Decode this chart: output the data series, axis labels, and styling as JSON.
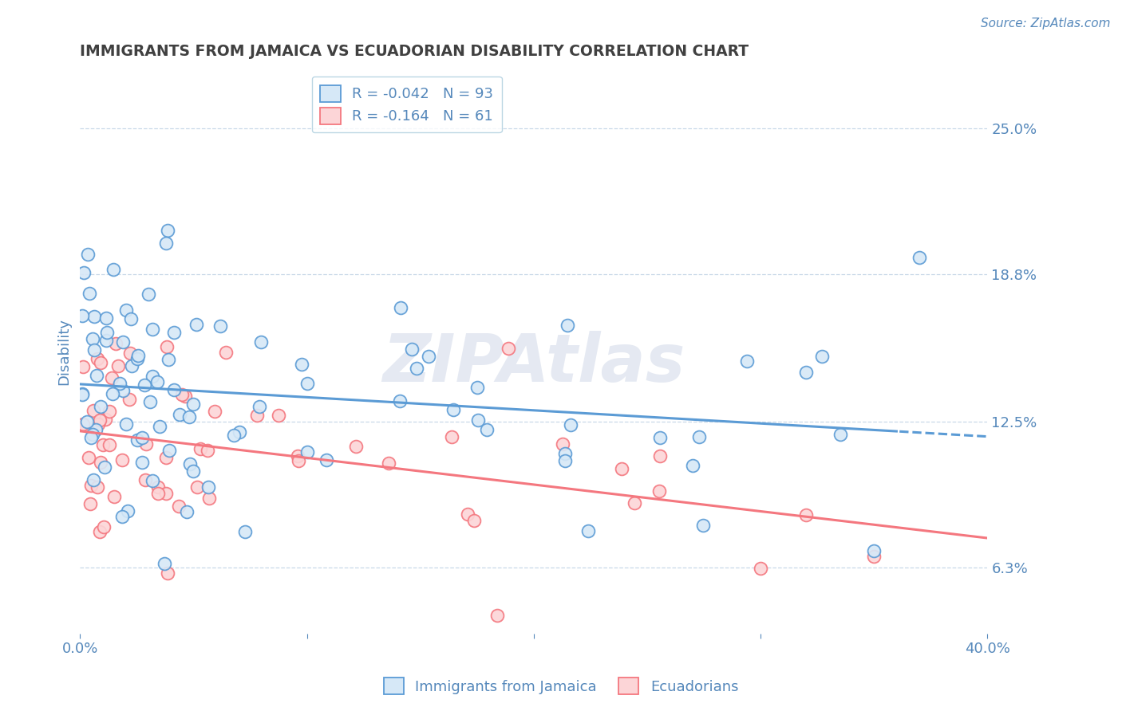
{
  "title": "IMMIGRANTS FROM JAMAICA VS ECUADORIAN DISABILITY CORRELATION CHART",
  "source_text": "Source: ZipAtlas.com",
  "ylabel": "Disability",
  "xlim": [
    0.0,
    40.0
  ],
  "ylim": [
    3.5,
    27.5
  ],
  "yticks": [
    6.3,
    12.5,
    18.8,
    25.0
  ],
  "xtick_labels": [
    "0.0%",
    "",
    "",
    "",
    "40.0%"
  ],
  "ytick_labels": [
    "6.3%",
    "12.5%",
    "18.8%",
    "25.0%"
  ],
  "blue_R": -0.042,
  "blue_N": 93,
  "pink_R": -0.164,
  "pink_N": 61,
  "blue_color": "#5b9bd5",
  "blue_face": "#d6e8f7",
  "pink_color": "#f4777f",
  "pink_face": "#fcd5d7",
  "blue_label": "Immigrants from Jamaica",
  "pink_label": "Ecuadorians",
  "watermark": "ZIPAtlas",
  "grid_color": "#c8d8e8",
  "background_color": "#ffffff",
  "title_color": "#404040",
  "axis_label_color": "#5588bb",
  "legend_text_color": "#5588bb",
  "title_fontsize": 13.5,
  "tick_fontsize": 13
}
